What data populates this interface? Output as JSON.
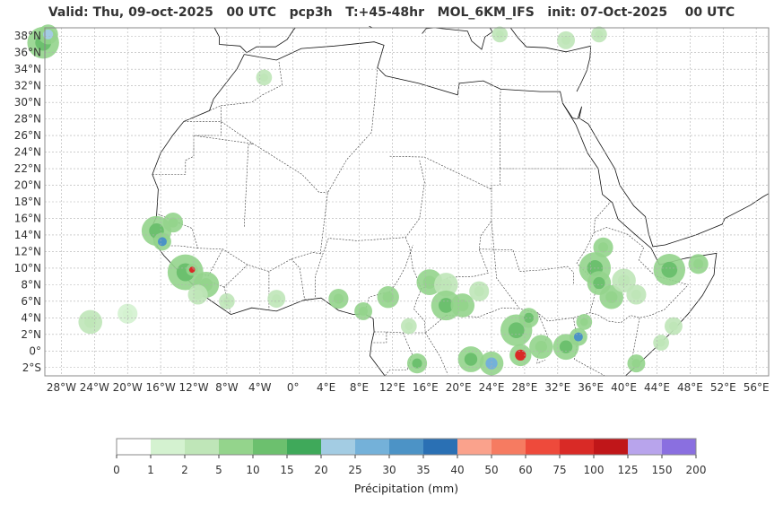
{
  "title": "Valid: Thu, 09-oct-2025   00 UTC   pcp3h   T:+45-48hr   MOL_6KM_IFS   init: 07-Oct-2025    00 UTC",
  "map": {
    "lat_labels": [
      "38°N",
      "36°N",
      "34°N",
      "32°N",
      "30°N",
      "28°N",
      "26°N",
      "24°N",
      "22°N",
      "20°N",
      "18°N",
      "16°N",
      "14°N",
      "12°N",
      "10°N",
      "8°N",
      "6°N",
      "4°N",
      "2°N",
      "0°",
      "2°S"
    ],
    "lat_values": [
      38,
      36,
      34,
      32,
      30,
      28,
      26,
      24,
      22,
      20,
      18,
      16,
      14,
      12,
      10,
      8,
      6,
      4,
      2,
      0,
      -2
    ],
    "lon_labels": [
      "28°W",
      "24°W",
      "20°W",
      "16°W",
      "12°W",
      "8°W",
      "4°W",
      "0°",
      "4°E",
      "8°E",
      "12°E",
      "16°E",
      "20°E",
      "24°E",
      "28°E",
      "32°E",
      "36°E",
      "40°E",
      "44°E",
      "48°E",
      "52°E",
      "56°E"
    ],
    "lon_values": [
      -28,
      -24,
      -20,
      -16,
      -12,
      -8,
      -4,
      0,
      4,
      8,
      12,
      16,
      20,
      24,
      28,
      32,
      36,
      40,
      44,
      48,
      52,
      56
    ],
    "extent": {
      "lon_min": -30,
      "lon_max": 57.5,
      "lat_min": -3,
      "lat_max": 39
    },
    "grid": true,
    "colors": {
      "land_line": "#111111",
      "grid": "#b0b0b0",
      "frame": "#888888"
    },
    "rain_cells": [
      {
        "lon": -30.2,
        "lat": 37.2,
        "size": 1.6,
        "level": 4
      },
      {
        "lon": -29.6,
        "lat": 38.2,
        "size": 1.0,
        "level": 6
      },
      {
        "lon": -24.5,
        "lat": 3.5,
        "size": 1.2,
        "level": 2
      },
      {
        "lon": -20.0,
        "lat": 4.5,
        "size": 1.0,
        "level": 1
      },
      {
        "lon": -16.5,
        "lat": 14.5,
        "size": 1.5,
        "level": 4
      },
      {
        "lon": -15.8,
        "lat": 13.2,
        "size": 0.9,
        "level": 8
      },
      {
        "lon": -14.5,
        "lat": 15.5,
        "size": 1.0,
        "level": 3
      },
      {
        "lon": -13.0,
        "lat": 9.5,
        "size": 1.8,
        "level": 4
      },
      {
        "lon": -12.2,
        "lat": 9.8,
        "size": 0.6,
        "level": 13
      },
      {
        "lon": -10.5,
        "lat": 8.0,
        "size": 1.3,
        "level": 3
      },
      {
        "lon": -11.5,
        "lat": 6.8,
        "size": 1.0,
        "level": 2
      },
      {
        "lon": -8.0,
        "lat": 6.0,
        "size": 0.8,
        "level": 2
      },
      {
        "lon": -3.5,
        "lat": 33.0,
        "size": 0.8,
        "level": 2
      },
      {
        "lon": -2.0,
        "lat": 6.3,
        "size": 0.9,
        "level": 2
      },
      {
        "lon": 5.5,
        "lat": 6.3,
        "size": 1.0,
        "level": 3
      },
      {
        "lon": 8.5,
        "lat": 4.8,
        "size": 0.9,
        "level": 3
      },
      {
        "lon": 11.5,
        "lat": 6.5,
        "size": 1.1,
        "level": 3
      },
      {
        "lon": 16.5,
        "lat": 8.3,
        "size": 1.3,
        "level": 3
      },
      {
        "lon": 18.5,
        "lat": 8.0,
        "size": 1.2,
        "level": 2
      },
      {
        "lon": 18.5,
        "lat": 5.5,
        "size": 1.5,
        "level": 4
      },
      {
        "lon": 20.5,
        "lat": 5.5,
        "size": 1.2,
        "level": 3
      },
      {
        "lon": 22.5,
        "lat": 7.2,
        "size": 1.0,
        "level": 2
      },
      {
        "lon": 15.0,
        "lat": -1.5,
        "size": 1.0,
        "level": 4
      },
      {
        "lon": 14.0,
        "lat": 3.0,
        "size": 0.8,
        "level": 2
      },
      {
        "lon": 21.5,
        "lat": -1.0,
        "size": 1.3,
        "level": 4
      },
      {
        "lon": 24.0,
        "lat": -1.5,
        "size": 1.2,
        "level": 7
      },
      {
        "lon": 27.0,
        "lat": 2.5,
        "size": 1.6,
        "level": 4
      },
      {
        "lon": 28.5,
        "lat": 4.0,
        "size": 1.0,
        "level": 4
      },
      {
        "lon": 27.5,
        "lat": -0.5,
        "size": 1.1,
        "level": 13
      },
      {
        "lon": 30.0,
        "lat": 0.5,
        "size": 1.2,
        "level": 3
      },
      {
        "lon": 33.0,
        "lat": 0.5,
        "size": 1.3,
        "level": 4
      },
      {
        "lon": 34.5,
        "lat": 1.7,
        "size": 0.9,
        "level": 8
      },
      {
        "lon": 35.2,
        "lat": 3.5,
        "size": 0.8,
        "level": 3
      },
      {
        "lon": 36.5,
        "lat": 10.0,
        "size": 1.6,
        "level": 4
      },
      {
        "lon": 37.0,
        "lat": 8.2,
        "size": 1.2,
        "level": 4
      },
      {
        "lon": 38.5,
        "lat": 6.5,
        "size": 1.2,
        "level": 3
      },
      {
        "lon": 37.5,
        "lat": 12.5,
        "size": 1.0,
        "level": 3
      },
      {
        "lon": 40.0,
        "lat": 8.5,
        "size": 1.2,
        "level": 2
      },
      {
        "lon": 41.5,
        "lat": 6.8,
        "size": 1.0,
        "level": 2
      },
      {
        "lon": 45.5,
        "lat": 9.8,
        "size": 1.6,
        "level": 4
      },
      {
        "lon": 49.0,
        "lat": 10.5,
        "size": 1.0,
        "level": 3
      },
      {
        "lon": 44.5,
        "lat": 1.0,
        "size": 0.8,
        "level": 2
      },
      {
        "lon": 41.5,
        "lat": -1.5,
        "size": 0.9,
        "level": 3
      },
      {
        "lon": 46.0,
        "lat": 3.0,
        "size": 0.9,
        "level": 2
      },
      {
        "lon": 33.0,
        "lat": 37.5,
        "size": 0.9,
        "level": 2
      },
      {
        "lon": 25.0,
        "lat": 38.2,
        "size": 0.8,
        "level": 2
      },
      {
        "lon": 37.0,
        "lat": 38.2,
        "size": 0.8,
        "level": 2
      }
    ]
  },
  "colorbar": {
    "label": "Précipitation (mm)",
    "ticks": [
      "0",
      "1",
      "2",
      "5",
      "10",
      "15",
      "20",
      "25",
      "30",
      "35",
      "40",
      "50",
      "60",
      "75",
      "100",
      "125",
      "150",
      "200"
    ],
    "colors": [
      "#ffffff",
      "#d4f2d0",
      "#bfe6b8",
      "#94d48c",
      "#6cc06e",
      "#3fa95a",
      "#a3cce3",
      "#74b1d9",
      "#4c93c6",
      "#2a70b4",
      "#faa28c",
      "#f67b61",
      "#ee4a3b",
      "#d92a26",
      "#c01619",
      "#b8a4ec",
      "#8a6fe0",
      "#4b0082"
    ]
  }
}
